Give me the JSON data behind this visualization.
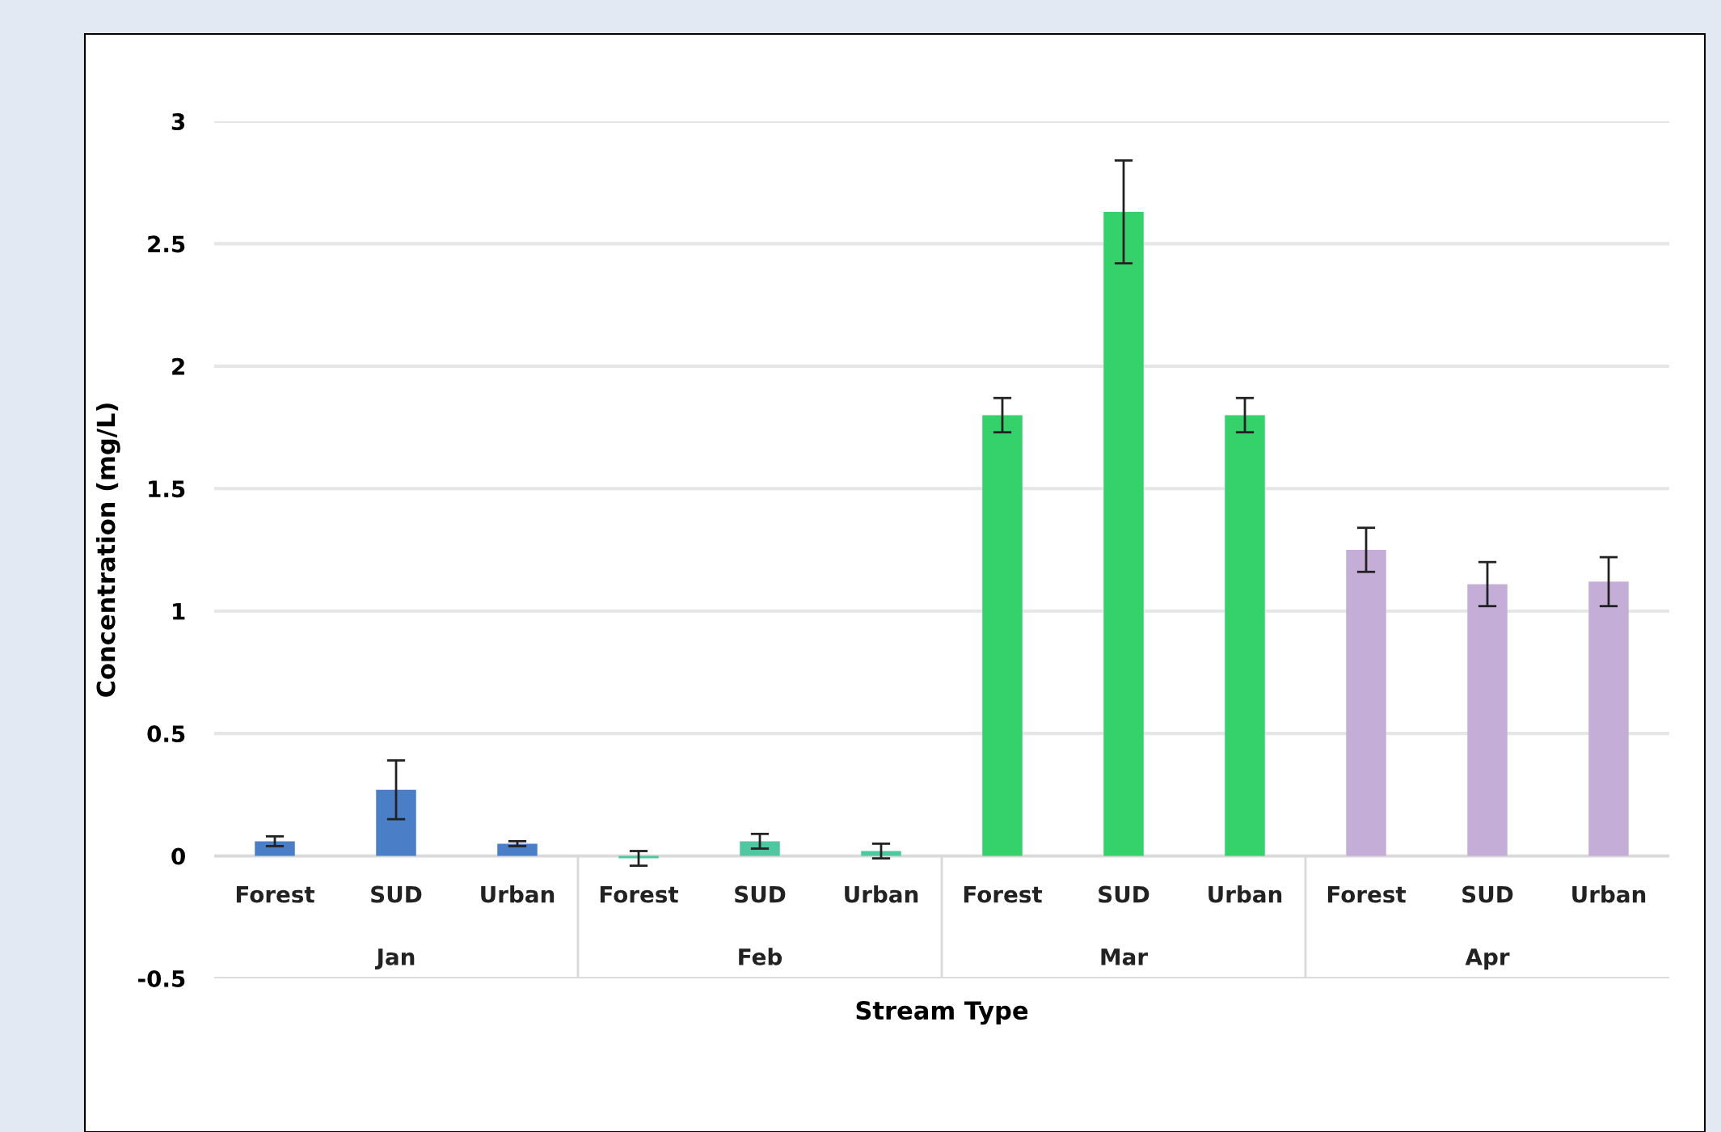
{
  "chart_data": {
    "type": "bar",
    "xlabel": "Stream Type",
    "ylabel": "Concentration (mg/L)",
    "categories": [
      "Forest",
      "SUD",
      "Urban",
      "Forest",
      "SUD",
      "Urban",
      "Forest",
      "SUD",
      "Urban",
      "Forest",
      "SUD",
      "Urban"
    ],
    "values": [
      0.06,
      0.27,
      0.05,
      -0.01,
      0.06,
      0.02,
      1.8,
      2.63,
      1.8,
      1.25,
      1.11,
      1.12
    ],
    "errors": [
      0.02,
      0.12,
      0.01,
      0.03,
      0.03,
      0.03,
      0.07,
      0.21,
      0.07,
      0.09,
      0.09,
      0.1
    ],
    "colors": [
      "#4a7fc8",
      "#4a7fc8",
      "#4a7fc8",
      "#4fc7a0",
      "#4fc7a0",
      "#4fc7a0",
      "#35d16a",
      "#35d16a",
      "#35d16a",
      "#c4aed8",
      "#c4aed8",
      "#c4aed8"
    ],
    "annotations": [
      "Jan",
      "Feb",
      "Mar",
      "Apr"
    ],
    "ylim": [
      -0.5,
      3
    ],
    "yticks": [
      -0.5,
      0,
      0.5,
      1,
      1.5,
      2,
      2.5,
      3
    ],
    "grid": "y"
  }
}
